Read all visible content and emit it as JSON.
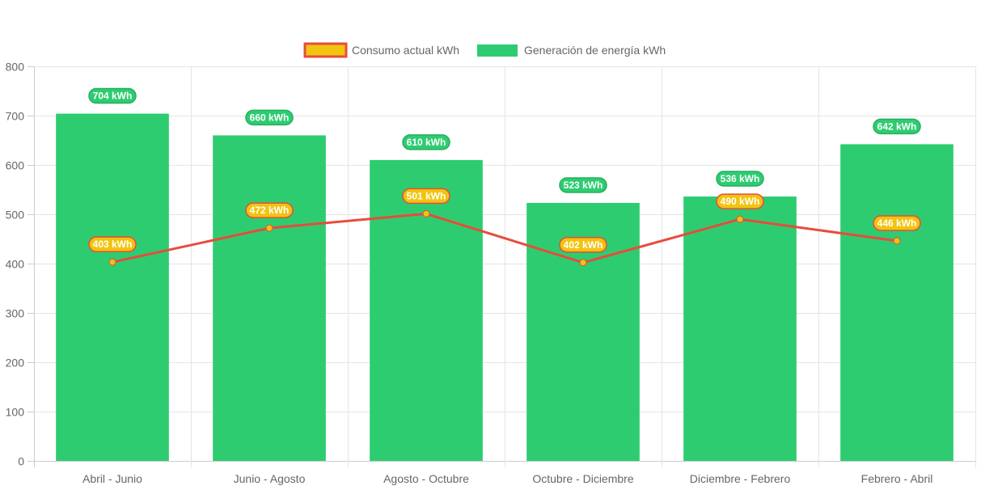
{
  "chart_data": {
    "type": "bar",
    "title": "",
    "xlabel": "",
    "ylabel": "",
    "ylim": [
      0,
      800
    ],
    "yticks": [
      0,
      100,
      200,
      300,
      400,
      500,
      600,
      700,
      800
    ],
    "grid": true,
    "legend_position": "top-center",
    "categories": [
      "Abril - Junio",
      "Junio - Agosto",
      "Agosto - Octubre",
      "Octubre - Diciembre",
      "Diciembre - Febrero",
      "Febrero - Abril"
    ],
    "series": [
      {
        "name": "Consumo actual kWh",
        "type": "line",
        "color": "#e74c3c",
        "fill": "#f1c40f",
        "values": [
          403,
          472,
          501,
          402,
          490,
          446
        ],
        "labels": [
          "403 kWh",
          "472 kWh",
          "501 kWh",
          "402 kWh",
          "490 kWh",
          "446 kWh"
        ]
      },
      {
        "name": "Generación de energía kWh",
        "type": "bar",
        "color": "#2ecc71",
        "values": [
          704,
          660,
          610,
          523,
          536,
          642
        ],
        "labels": [
          "704 kWh",
          "660 kWh",
          "610 kWh",
          "523 kWh",
          "536 kWh",
          "642 kWh"
        ]
      }
    ]
  }
}
